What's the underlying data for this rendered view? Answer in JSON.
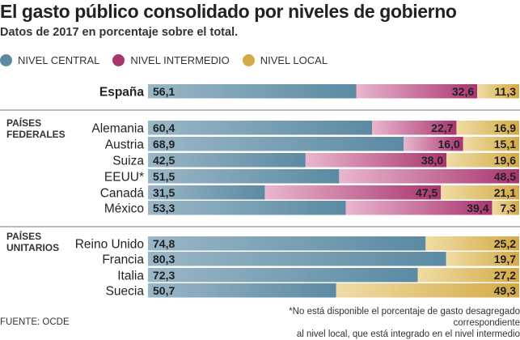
{
  "header": {
    "title": "El gasto público consolidado por niveles de gobierno",
    "subtitle": "Datos de 2017 en porcentaje sobre el total."
  },
  "legend": [
    {
      "label": "NIVEL CENTRAL",
      "color": "#5b8aa2"
    },
    {
      "label": "NIVEL INTERMEDIO",
      "color": "#a9356f"
    },
    {
      "label": "NIVEL LOCAL",
      "color": "#d4aa45"
    }
  ],
  "colors": {
    "central_from": "#9ab7c7",
    "central_to": "#5b8aa2",
    "intermedio_from": "#e9b6cf",
    "intermedio_to": "#a9356f",
    "local_from": "#efdca5",
    "local_to": "#d4aa45",
    "separator": "#bbbbbb"
  },
  "footer": {
    "source": "FUENTE: OCDE",
    "note_line1": "*No está disponible el porcentaje de gasto desagregado correspondiente",
    "note_line2": "al nivel local, que está integrado en el nivel intermedio"
  },
  "chart_data": {
    "type": "bar",
    "orientation": "horizontal",
    "stacked": true,
    "title": "El gasto público consolidado por niveles de gobierno",
    "subtitle": "Datos de 2017 en porcentaje sobre el total.",
    "series_names": [
      "NIVEL CENTRAL",
      "NIVEL INTERMEDIO",
      "NIVEL LOCAL"
    ],
    "xlim": [
      0,
      100
    ],
    "groups": [
      {
        "label": "",
        "rows": [
          {
            "country": "España",
            "bold": true,
            "central": "56,1",
            "intermedio": "32,6",
            "local": "11,3"
          }
        ]
      },
      {
        "label_line1": "PAÍSES",
        "label_line2": "FEDERALES",
        "rows": [
          {
            "country": "Alemania",
            "central": "60,4",
            "intermedio": "22,7",
            "local": "16,9"
          },
          {
            "country": "Austria",
            "central": "68,9",
            "intermedio": "16,0",
            "local": "15,1"
          },
          {
            "country": "Suiza",
            "central": "42,5",
            "intermedio": "38,0",
            "local": "19,6"
          },
          {
            "country": "EEUU*",
            "central": "51,5",
            "intermedio": "48,5",
            "local": null
          },
          {
            "country": "Canadá",
            "central": "31,5",
            "intermedio": "47,5",
            "local": "21,1"
          },
          {
            "country": "México",
            "central": "53,3",
            "intermedio": "39,4",
            "local": "7,3"
          }
        ]
      },
      {
        "label_line1": "PAÍSES",
        "label_line2": "UNITARIOS",
        "rows": [
          {
            "country": "Reino Unido",
            "central": "74,8",
            "intermedio": null,
            "local": "25,2"
          },
          {
            "country": "Francia",
            "central": "80,3",
            "intermedio": null,
            "local": "19,7"
          },
          {
            "country": "Italia",
            "central": "72,3",
            "intermedio": null,
            "local": "27,2"
          },
          {
            "country": "Suecia",
            "central": "50,7",
            "intermedio": null,
            "local": "49,3"
          }
        ]
      }
    ]
  }
}
